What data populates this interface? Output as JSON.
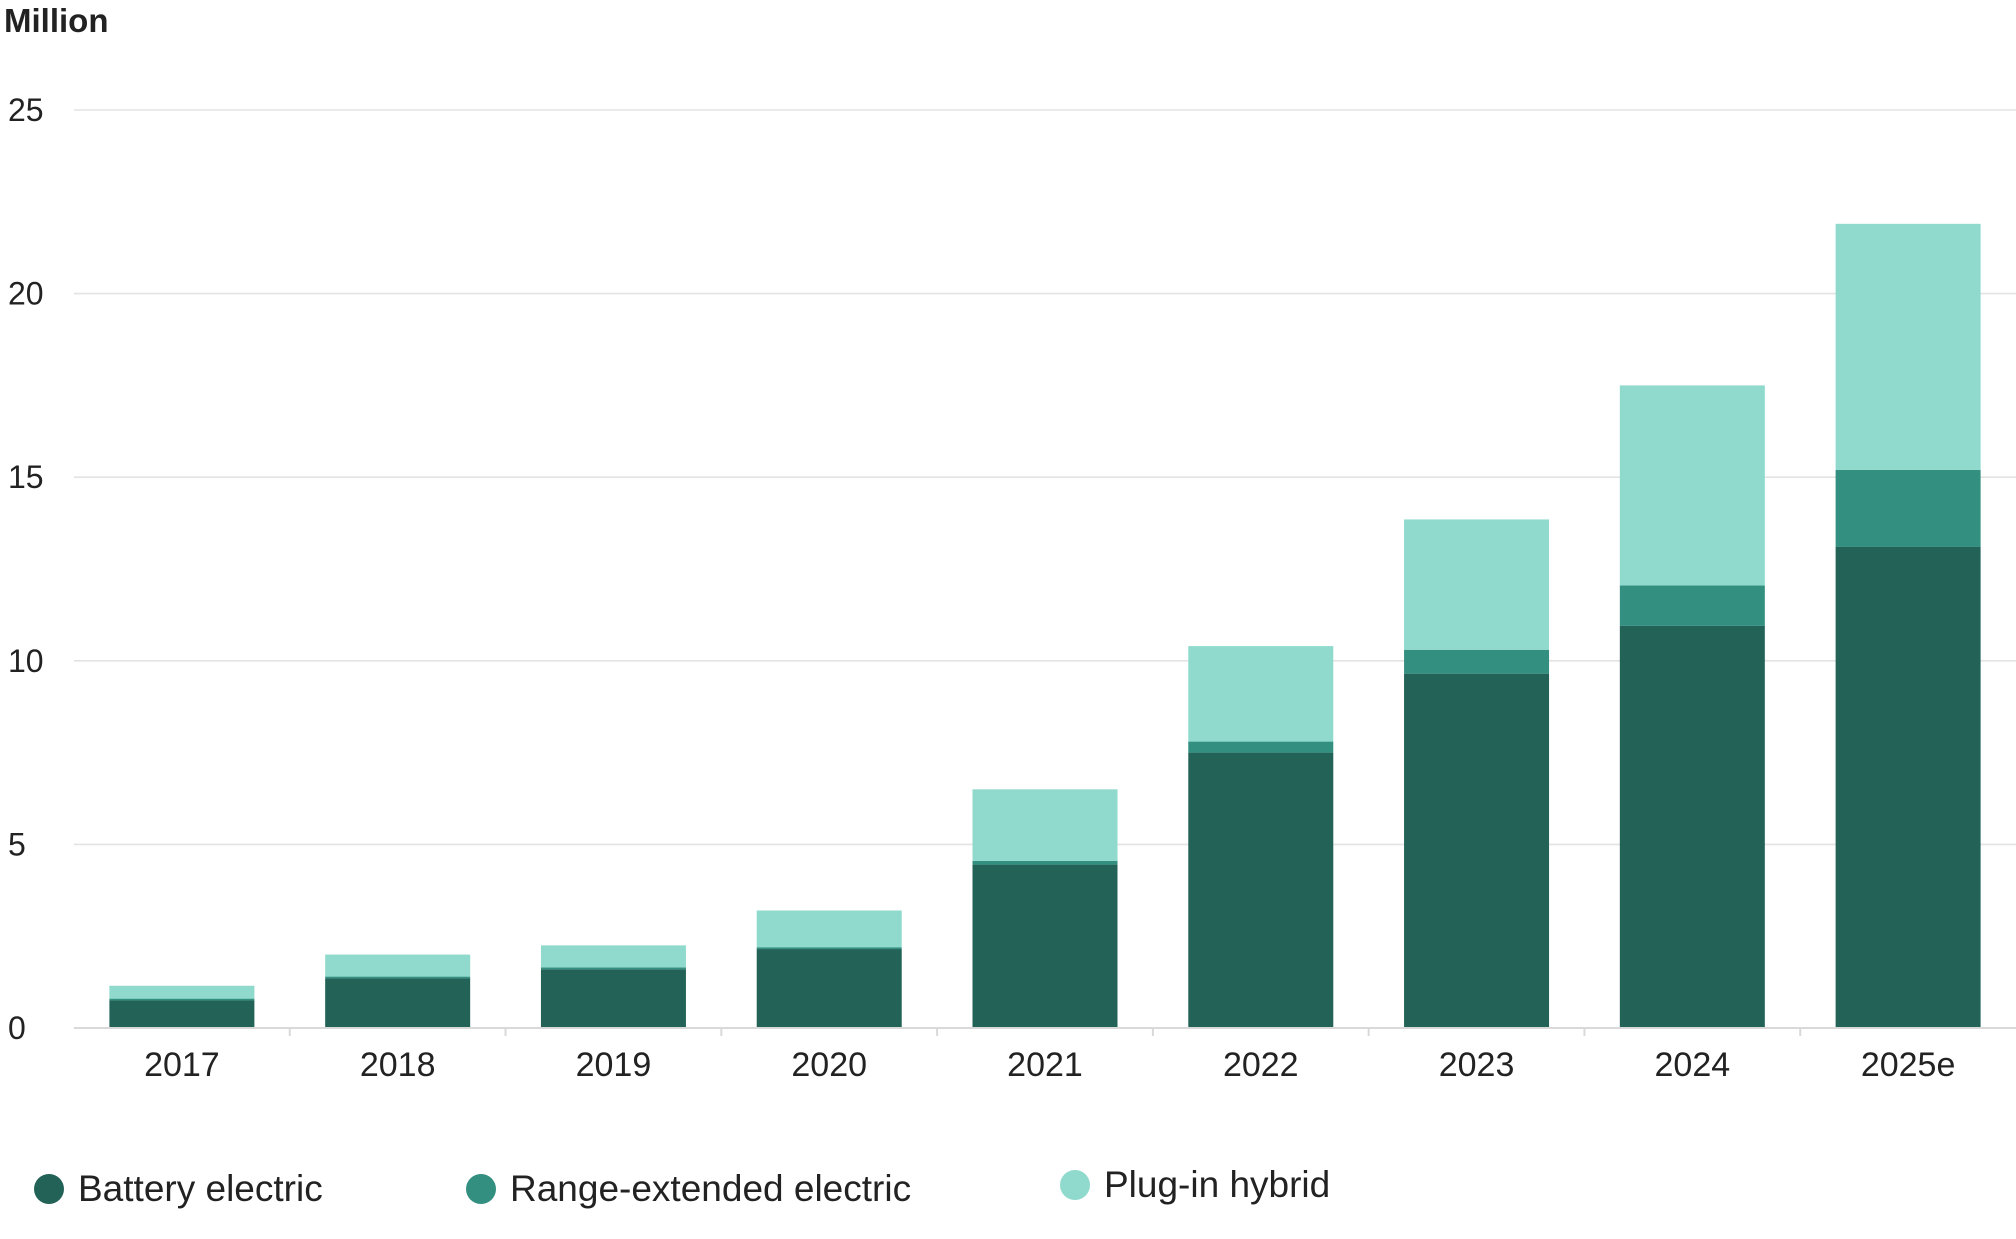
{
  "chart_data": {
    "type": "bar",
    "stacked": true,
    "unit_label": "Million",
    "categories": [
      "2017",
      "2018",
      "2019",
      "2020",
      "2021",
      "2022",
      "2023",
      "2024",
      "2025e"
    ],
    "series": [
      {
        "name": "Battery electric",
        "color": "#226257",
        "values": [
          0.75,
          1.35,
          1.6,
          2.15,
          4.45,
          7.5,
          9.65,
          10.95,
          13.1
        ]
      },
      {
        "name": "Range-extended electric",
        "color": "#338f80",
        "values": [
          0.05,
          0.05,
          0.05,
          0.05,
          0.1,
          0.3,
          0.65,
          1.1,
          2.1
        ]
      },
      {
        "name": "Plug-in hybrid",
        "color": "#8fd9cd",
        "values": [
          0.35,
          0.6,
          0.6,
          1.0,
          1.95,
          2.6,
          3.55,
          5.45,
          6.7
        ]
      }
    ],
    "ylim": [
      0,
      25
    ],
    "yticks": [
      0,
      5,
      10,
      15,
      20,
      25
    ],
    "grid": true,
    "legend_position": "bottom-left"
  }
}
